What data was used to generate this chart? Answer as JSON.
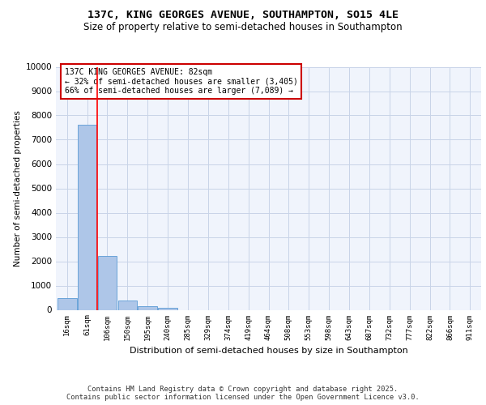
{
  "title_line1": "137C, KING GEORGES AVENUE, SOUTHAMPTON, SO15 4LE",
  "title_line2": "Size of property relative to semi-detached houses in Southampton",
  "xlabel": "Distribution of semi-detached houses by size in Southampton",
  "ylabel": "Number of semi-detached properties",
  "categories": [
    "16sqm",
    "61sqm",
    "106sqm",
    "150sqm",
    "195sqm",
    "240sqm",
    "285sqm",
    "329sqm",
    "374sqm",
    "419sqm",
    "464sqm",
    "508sqm",
    "553sqm",
    "598sqm",
    "643sqm",
    "687sqm",
    "732sqm",
    "777sqm",
    "822sqm",
    "866sqm",
    "911sqm"
  ],
  "values": [
    480,
    7600,
    2220,
    380,
    150,
    100,
    0,
    0,
    0,
    0,
    0,
    0,
    0,
    0,
    0,
    0,
    0,
    0,
    0,
    0,
    0
  ],
  "bar_color": "#aec6e8",
  "bar_edge_color": "#5b9bd5",
  "red_line_x": 1.5,
  "annotation_text_line1": "137C KING GEORGES AVENUE: 82sqm",
  "annotation_text_line2": "← 32% of semi-detached houses are smaller (3,405)",
  "annotation_text_line3": "66% of semi-detached houses are larger (7,089) →",
  "annotation_box_color": "#ffffff",
  "annotation_box_edge": "#cc0000",
  "grid_color": "#c8d4e8",
  "background_color": "#f0f4fc",
  "ylim": [
    0,
    10000
  ],
  "yticks": [
    0,
    1000,
    2000,
    3000,
    4000,
    5000,
    6000,
    7000,
    8000,
    9000,
    10000
  ],
  "footer_line1": "Contains HM Land Registry data © Crown copyright and database right 2025.",
  "footer_line2": "Contains public sector information licensed under the Open Government Licence v3.0."
}
